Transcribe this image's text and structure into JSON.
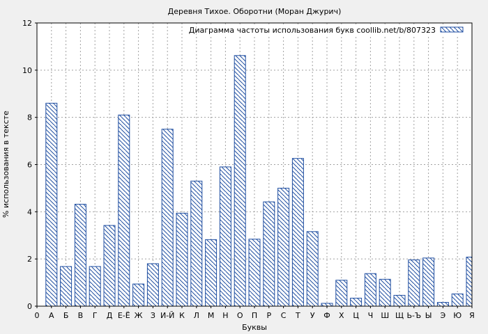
{
  "chart_data": {
    "type": "bar",
    "title": "Деревня Тихое. Оборотни (Моран Джурич)",
    "xlabel": "Буквы",
    "ylabel": "% использования в тексте",
    "legend": {
      "label": "Диаграмма частоты использования букв coollib.net/b/807323",
      "placement": "top-right"
    },
    "ylim": [
      0,
      12
    ],
    "y_ticks": [
      "0",
      "2",
      "4",
      "6",
      "8",
      "10",
      "12"
    ],
    "grid": true,
    "x_ticks": [
      "0",
      "А",
      "Б",
      "В",
      "Г",
      "Д",
      "Е-Ё",
      "Ж",
      "З",
      "И-Й",
      "К",
      "Л",
      "М",
      "Н",
      "О",
      "П",
      "Р",
      "С",
      "Т",
      "У",
      "Ф",
      "Х",
      "Ц",
      "Ч",
      "Ш",
      "Щ",
      "Ь-Ъ",
      "Ы",
      "Э",
      "Ю",
      "Я"
    ],
    "categories": [
      "А",
      "Б",
      "В",
      "Г",
      "Д",
      "Е-Ё",
      "Ж",
      "З",
      "И-Й",
      "К",
      "Л",
      "М",
      "Н",
      "О",
      "П",
      "Р",
      "С",
      "Т",
      "У",
      "Ф",
      "Х",
      "Ц",
      "Ч",
      "Ш",
      "Щ",
      "Ь-Ъ",
      "Ы",
      "Э",
      "Ю",
      "Я"
    ],
    "values": [
      8.6,
      1.68,
      4.32,
      1.68,
      3.42,
      8.1,
      0.94,
      1.8,
      7.5,
      3.94,
      5.3,
      2.82,
      5.9,
      10.62,
      2.84,
      4.42,
      5.0,
      6.26,
      3.16,
      0.12,
      1.1,
      0.34,
      1.38,
      1.14,
      0.46,
      1.96,
      2.04,
      0.16,
      0.52,
      2.08
    ],
    "colors": {
      "bar_stroke": "#1f4ea1",
      "hatch": "#1f4ea1",
      "background": "#f0f0f0",
      "plot_background": "#ffffff",
      "grid": "#a0a0a0"
    }
  }
}
